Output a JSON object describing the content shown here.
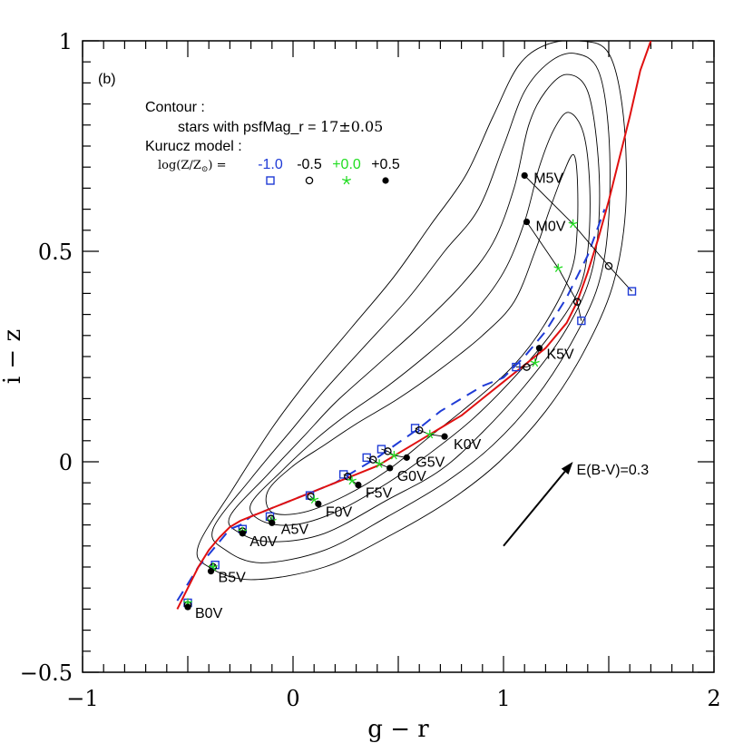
{
  "chart_data": {
    "type": "scatter",
    "panel_label": "(b)",
    "xlabel": "g − r",
    "ylabel": "i − z",
    "xlim": [
      -1,
      2
    ],
    "ylim": [
      -0.5,
      1
    ],
    "x_ticks": [
      "−1",
      "0",
      "1",
      "2"
    ],
    "y_ticks": [
      "−0.5",
      "0",
      "0.5",
      "1"
    ],
    "contour_title": "Contour :",
    "contour_desc_prefix": "stars with psfMag_r = ",
    "contour_desc_value": "17±0.05",
    "model_title": "Kurucz model :",
    "metallicity_prefix": "log(Z/Z",
    "metallicity_suffix": ") =",
    "legend": [
      {
        "label": "-1.0",
        "color": "#1f3bd6",
        "marker": "open-square"
      },
      {
        "label": "-0.5",
        "color": "#000000",
        "marker": "open-circle"
      },
      {
        "label": "+0.0",
        "color": "#22dd22",
        "marker": "star"
      },
      {
        "label": "+0.5",
        "color": "#000000",
        "marker": "filled-circle"
      }
    ],
    "reddening_label": "E(B-V)=0.3",
    "reddening_vector": {
      "from": [
        1.0,
        -0.2
      ],
      "to": [
        1.33,
        0.0
      ]
    },
    "red_curve": {
      "color": "#e01010",
      "x": [
        -0.55,
        -0.5,
        -0.45,
        -0.4,
        -0.35,
        -0.3,
        -0.25,
        -0.2,
        -0.15,
        -0.1,
        0.0,
        0.1,
        0.2,
        0.3,
        0.4,
        0.5,
        0.6,
        0.7,
        0.8,
        0.9,
        1.0,
        1.1,
        1.2,
        1.3,
        1.35,
        1.4,
        1.45,
        1.5,
        1.55,
        1.6,
        1.65,
        1.7
      ],
      "y": [
        -0.35,
        -0.3,
        -0.25,
        -0.21,
        -0.18,
        -0.155,
        -0.14,
        -0.13,
        -0.12,
        -0.11,
        -0.09,
        -0.07,
        -0.05,
        -0.03,
        -0.01,
        0.02,
        0.05,
        0.08,
        0.11,
        0.15,
        0.19,
        0.23,
        0.27,
        0.33,
        0.38,
        0.45,
        0.53,
        0.62,
        0.72,
        0.82,
        0.93,
        1.0
      ]
    },
    "blue_dashed_curve": {
      "color": "#1f3bd6",
      "x": [
        -0.55,
        -0.5,
        -0.45,
        -0.4,
        -0.35,
        -0.3,
        -0.25,
        -0.2,
        -0.1,
        0.0,
        0.1,
        0.2,
        0.3,
        0.4,
        0.5,
        0.6,
        0.7,
        0.8,
        0.9,
        1.0,
        1.1,
        1.2,
        1.3,
        1.4,
        1.48
      ],
      "y": [
        -0.33,
        -0.29,
        -0.25,
        -0.22,
        -0.19,
        -0.16,
        -0.15,
        -0.13,
        -0.11,
        -0.09,
        -0.07,
        -0.05,
        -0.02,
        0.01,
        0.045,
        0.08,
        0.12,
        0.15,
        0.18,
        0.2,
        0.25,
        0.31,
        0.39,
        0.49,
        0.6
      ]
    },
    "model_points": [
      {
        "label": "B0V",
        "pts": [
          [
            -0.5,
            -0.335
          ],
          [
            -0.5,
            -0.34
          ],
          [
            -0.5,
            -0.335
          ],
          [
            -0.5,
            -0.345
          ]
        ]
      },
      {
        "label": "B5V",
        "pts": [
          [
            -0.37,
            -0.245
          ],
          [
            -0.38,
            -0.25
          ],
          [
            -0.38,
            -0.25
          ],
          [
            -0.39,
            -0.26
          ]
        ]
      },
      {
        "label": "A0V",
        "pts": [
          [
            -0.24,
            -0.16
          ],
          [
            -0.24,
            -0.165
          ],
          [
            -0.24,
            -0.165
          ],
          [
            -0.24,
            -0.17
          ]
        ]
      },
      {
        "label": "A5V",
        "pts": [
          [
            -0.11,
            -0.13
          ],
          [
            -0.105,
            -0.135
          ],
          [
            -0.1,
            -0.14
          ],
          [
            -0.1,
            -0.145
          ]
        ]
      },
      {
        "label": "F0V",
        "pts": [
          [
            0.08,
            -0.08
          ],
          [
            0.085,
            -0.083
          ],
          [
            0.1,
            -0.09
          ],
          [
            0.12,
            -0.1
          ]
        ]
      },
      {
        "label": "F5V",
        "pts": [
          [
            0.24,
            -0.03
          ],
          [
            0.26,
            -0.035
          ],
          [
            0.28,
            -0.045
          ],
          [
            0.31,
            -0.055
          ]
        ]
      },
      {
        "label": "G0V",
        "pts": [
          [
            0.35,
            0.01
          ],
          [
            0.38,
            0.005
          ],
          [
            0.41,
            -0.005
          ],
          [
            0.46,
            -0.015
          ]
        ]
      },
      {
        "label": "G5V",
        "pts": [
          [
            0.42,
            0.03
          ],
          [
            0.45,
            0.025
          ],
          [
            0.48,
            0.015
          ],
          [
            0.54,
            0.01
          ]
        ]
      },
      {
        "label": "K0V",
        "pts": [
          [
            0.58,
            0.08
          ],
          [
            0.6,
            0.075
          ],
          [
            0.65,
            0.065
          ],
          [
            0.72,
            0.06
          ]
        ]
      },
      {
        "label": "K5V",
        "pts": [
          [
            1.06,
            0.225
          ],
          [
            1.11,
            0.225
          ],
          [
            1.15,
            0.235
          ],
          [
            1.17,
            0.27
          ]
        ]
      },
      {
        "label": "M0V",
        "pts": [
          [
            1.37,
            0.335
          ],
          [
            1.35,
            0.38
          ],
          [
            1.26,
            0.46
          ],
          [
            1.11,
            0.57
          ]
        ]
      },
      {
        "label": "M5V",
        "pts": [
          [
            1.61,
            0.405
          ],
          [
            1.5,
            0.465
          ],
          [
            1.33,
            0.565
          ],
          [
            1.1,
            0.68
          ]
        ]
      }
    ],
    "contour_color": "#000000",
    "contour_levels": [
      {
        "points": [
          [
            -0.12,
            -0.07
          ],
          [
            0.0,
            -0.01
          ],
          [
            0.15,
            0.04
          ],
          [
            0.3,
            0.09
          ],
          [
            0.5,
            0.15
          ],
          [
            0.7,
            0.22
          ],
          [
            0.9,
            0.3
          ],
          [
            1.05,
            0.38
          ],
          [
            1.15,
            0.5
          ],
          [
            1.22,
            0.6
          ],
          [
            1.28,
            0.68
          ],
          [
            1.33,
            0.73
          ],
          [
            1.35,
            0.68
          ],
          [
            1.35,
            0.55
          ],
          [
            1.32,
            0.45
          ],
          [
            1.2,
            0.33
          ],
          [
            1.05,
            0.23
          ],
          [
            0.85,
            0.14
          ],
          [
            0.65,
            0.06
          ],
          [
            0.45,
            -0.02
          ],
          [
            0.25,
            -0.08
          ],
          [
            0.05,
            -0.12
          ],
          [
            -0.1,
            -0.12
          ]
        ]
      },
      {
        "points": [
          [
            -0.2,
            -0.1
          ],
          [
            -0.05,
            -0.02
          ],
          [
            0.1,
            0.05
          ],
          [
            0.25,
            0.11
          ],
          [
            0.45,
            0.18
          ],
          [
            0.65,
            0.26
          ],
          [
            0.85,
            0.35
          ],
          [
            1.0,
            0.45
          ],
          [
            1.1,
            0.57
          ],
          [
            1.17,
            0.7
          ],
          [
            1.24,
            0.79
          ],
          [
            1.31,
            0.83
          ],
          [
            1.38,
            0.78
          ],
          [
            1.41,
            0.65
          ],
          [
            1.4,
            0.5
          ],
          [
            1.35,
            0.4
          ],
          [
            1.22,
            0.3
          ],
          [
            1.05,
            0.2
          ],
          [
            0.85,
            0.1
          ],
          [
            0.65,
            0.02
          ],
          [
            0.45,
            -0.05
          ],
          [
            0.2,
            -0.12
          ],
          [
            0.0,
            -0.15
          ],
          [
            -0.15,
            -0.14
          ]
        ]
      },
      {
        "points": [
          [
            -0.3,
            -0.13
          ],
          [
            -0.12,
            -0.03
          ],
          [
            0.05,
            0.06
          ],
          [
            0.2,
            0.14
          ],
          [
            0.4,
            0.23
          ],
          [
            0.6,
            0.32
          ],
          [
            0.8,
            0.42
          ],
          [
            0.95,
            0.52
          ],
          [
            1.05,
            0.65
          ],
          [
            1.12,
            0.8
          ],
          [
            1.2,
            0.88
          ],
          [
            1.3,
            0.92
          ],
          [
            1.4,
            0.88
          ],
          [
            1.45,
            0.72
          ],
          [
            1.45,
            0.55
          ],
          [
            1.4,
            0.42
          ],
          [
            1.28,
            0.3
          ],
          [
            1.1,
            0.18
          ],
          [
            0.9,
            0.07
          ],
          [
            0.7,
            -0.02
          ],
          [
            0.45,
            -0.09
          ],
          [
            0.15,
            -0.17
          ],
          [
            -0.1,
            -0.19
          ],
          [
            -0.25,
            -0.17
          ]
        ]
      },
      {
        "points": [
          [
            -0.38,
            -0.16
          ],
          [
            -0.2,
            -0.04
          ],
          [
            0.0,
            0.08
          ],
          [
            0.15,
            0.17
          ],
          [
            0.35,
            0.28
          ],
          [
            0.55,
            0.39
          ],
          [
            0.72,
            0.5
          ],
          [
            0.88,
            0.6
          ],
          [
            1.0,
            0.75
          ],
          [
            1.1,
            0.88
          ],
          [
            1.22,
            0.95
          ],
          [
            1.34,
            0.97
          ],
          [
            1.45,
            0.93
          ],
          [
            1.5,
            0.78
          ],
          [
            1.5,
            0.58
          ],
          [
            1.45,
            0.42
          ],
          [
            1.32,
            0.28
          ],
          [
            1.15,
            0.15
          ],
          [
            0.95,
            0.04
          ],
          [
            0.72,
            -0.05
          ],
          [
            0.45,
            -0.13
          ],
          [
            0.15,
            -0.21
          ],
          [
            -0.15,
            -0.24
          ],
          [
            -0.32,
            -0.21
          ]
        ]
      },
      {
        "points": [
          [
            -0.45,
            -0.2
          ],
          [
            -0.28,
            -0.06
          ],
          [
            -0.1,
            0.08
          ],
          [
            0.08,
            0.2
          ],
          [
            0.28,
            0.32
          ],
          [
            0.48,
            0.44
          ],
          [
            0.65,
            0.56
          ],
          [
            0.82,
            0.68
          ],
          [
            0.95,
            0.82
          ],
          [
            1.07,
            0.94
          ],
          [
            1.2,
            0.99
          ],
          [
            1.36,
            1.0
          ],
          [
            1.5,
            0.97
          ],
          [
            1.57,
            0.82
          ],
          [
            1.58,
            0.6
          ],
          [
            1.52,
            0.42
          ],
          [
            1.38,
            0.26
          ],
          [
            1.2,
            0.12
          ],
          [
            0.98,
            0.0
          ],
          [
            0.75,
            -0.09
          ],
          [
            0.48,
            -0.17
          ],
          [
            0.15,
            -0.25
          ],
          [
            -0.2,
            -0.28
          ],
          [
            -0.4,
            -0.25
          ]
        ]
      }
    ]
  }
}
